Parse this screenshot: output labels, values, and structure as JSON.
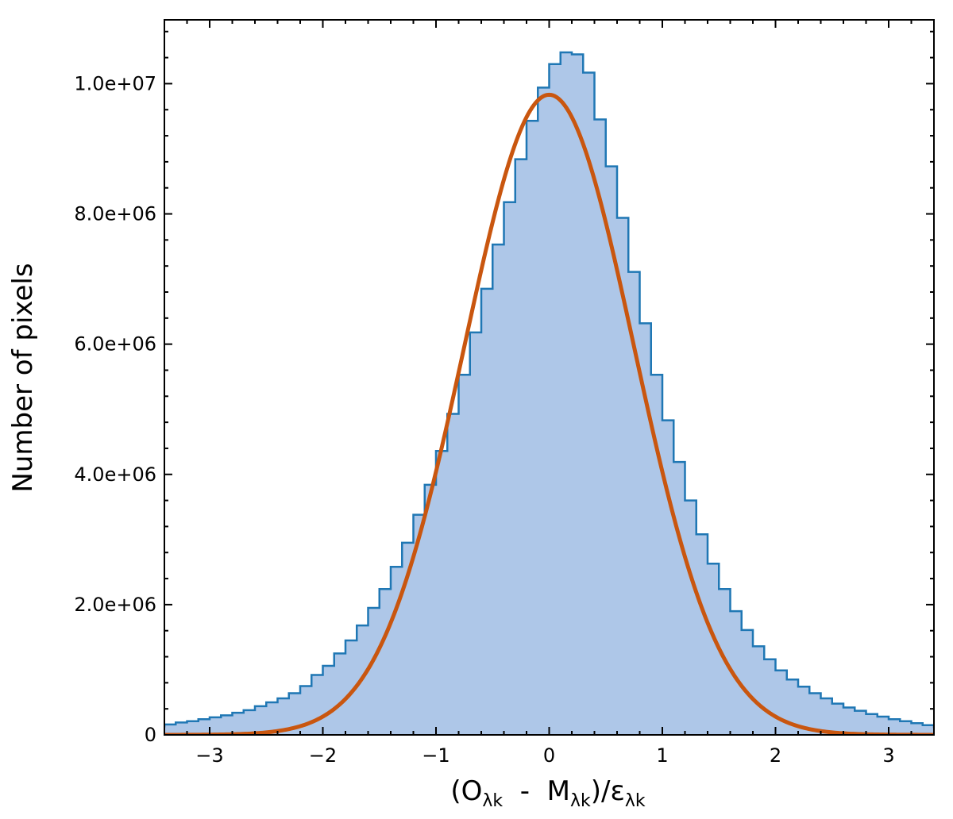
{
  "chart_data": {
    "type": "bar",
    "xlabel_parts": {
      "open": "(O",
      "sub1": "λk",
      "minus": "  -  M",
      "sub2": "λk",
      "mid": ")/ε",
      "sub3": "λk"
    },
    "ylabel": "Number of pixels",
    "xlim": [
      -3.4,
      3.4
    ],
    "ylim": [
      0,
      10980000
    ],
    "x_ticks": [
      -3,
      -2,
      -1,
      0,
      1,
      2,
      3
    ],
    "x_tick_labels": [
      "−3",
      "−2",
      "−1",
      "0",
      "1",
      "2",
      "3"
    ],
    "y_ticks": [
      0,
      2000000,
      4000000,
      6000000,
      8000000,
      10000000
    ],
    "y_tick_labels": [
      "0",
      "2.0e+06",
      "4.0e+06",
      "6.0e+06",
      "8.0e+06",
      "1.0e+07"
    ],
    "series": [
      {
        "kind": "histogram",
        "bin_width": 0.1,
        "bin_start": -3.5,
        "values": [
          130000,
          160000,
          190000,
          210000,
          240000,
          270000,
          300000,
          340000,
          380000,
          440000,
          500000,
          560000,
          640000,
          750000,
          920000,
          1060000,
          1250000,
          1450000,
          1680000,
          1950000,
          2240000,
          2580000,
          2950000,
          3380000,
          3840000,
          4360000,
          4930000,
          5530000,
          6180000,
          6850000,
          7530000,
          8180000,
          8840000,
          9430000,
          9940000,
          10300000,
          10480000,
          10450000,
          10170000,
          9450000,
          8730000,
          7940000,
          7110000,
          6320000,
          5530000,
          4830000,
          4190000,
          3600000,
          3080000,
          2630000,
          2240000,
          1900000,
          1610000,
          1360000,
          1160000,
          990000,
          850000,
          740000,
          640000,
          560000,
          480000,
          420000,
          370000,
          320000,
          280000,
          240000,
          210000,
          180000,
          150000,
          120000
        ],
        "fill_color": "#aec7e8",
        "line_color": "#1f77b4"
      },
      {
        "kind": "gaussian-fit",
        "amplitude": 9830000,
        "mean": 0.0,
        "sigma": 0.75,
        "color": "#c9560f"
      }
    ],
    "grid": false,
    "legend": "none"
  }
}
